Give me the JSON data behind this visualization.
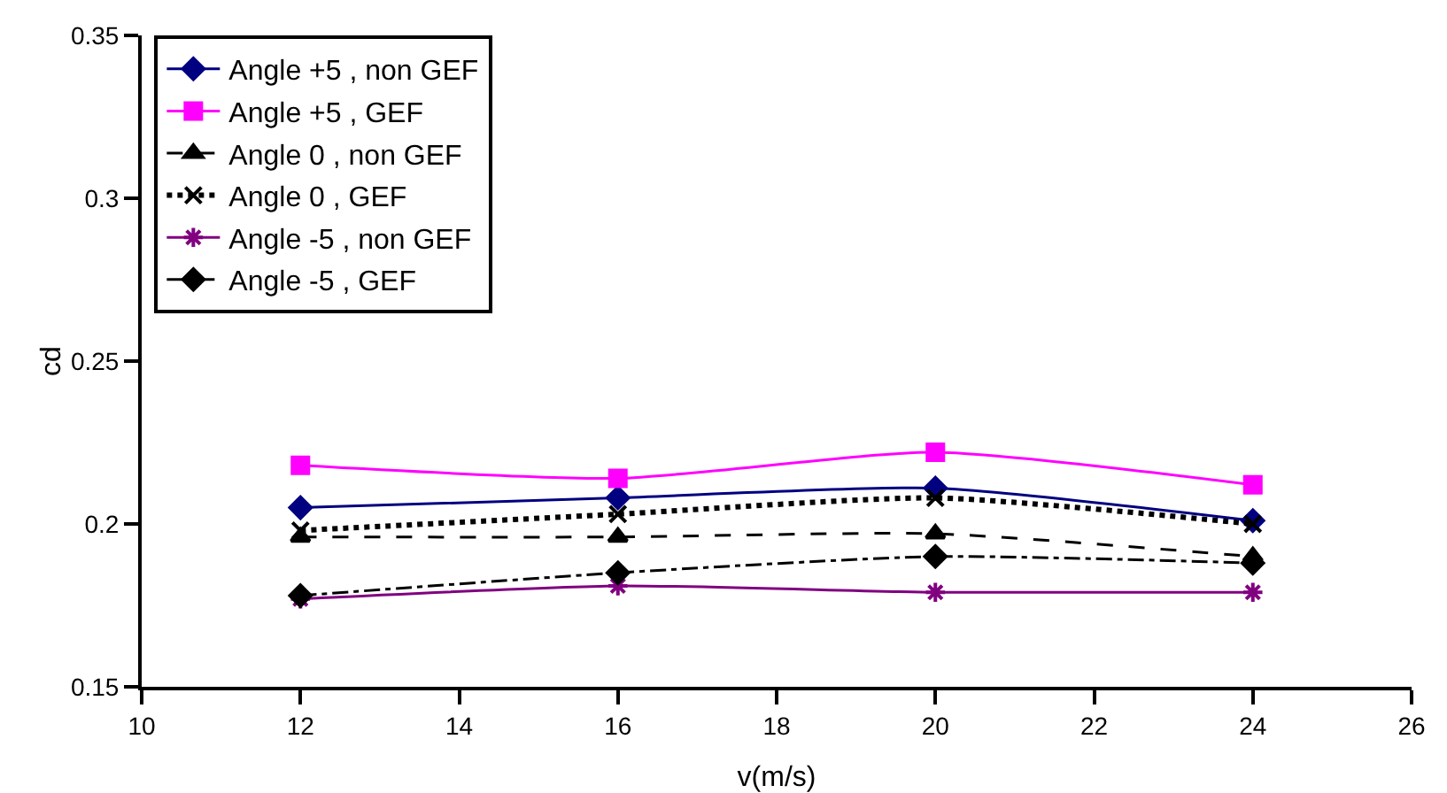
{
  "chart_data": {
    "type": "line",
    "xlabel": "v(m/s)",
    "ylabel": "cd",
    "x": [
      12,
      16,
      20,
      24
    ],
    "xlim": [
      10,
      26
    ],
    "xticks": [
      10,
      12,
      14,
      16,
      18,
      20,
      22,
      24,
      26
    ],
    "ylim": [
      0.15,
      0.35
    ],
    "yticks": [
      0.15,
      0.2,
      0.25,
      0.3,
      0.35
    ],
    "grid": false,
    "legend": "top left",
    "series": [
      {
        "name": "Angle +5 , non GEF",
        "color": "#000080",
        "values": [
          0.205,
          0.208,
          0.211,
          0.201
        ],
        "marker": "diamond",
        "line_style": "solid"
      },
      {
        "name": "Angle +5 , GEF",
        "color": "#ff00ff",
        "values": [
          0.218,
          0.214,
          0.222,
          0.212
        ],
        "marker": "square",
        "line_style": "solid"
      },
      {
        "name": "Angle 0 , non GEF",
        "color": "#000000",
        "values": [
          0.196,
          0.196,
          0.197,
          0.19
        ],
        "marker": "triangle",
        "line_style": "dashed"
      },
      {
        "name": "Angle 0 , GEF",
        "color": "#000000",
        "values": [
          0.198,
          0.203,
          0.208,
          0.2
        ],
        "marker": "cross",
        "line_style": "dotted"
      },
      {
        "name": "Angle -5 , non GEF",
        "color": "#800080",
        "values": [
          0.177,
          0.181,
          0.179,
          0.179
        ],
        "marker": "cross",
        "line_style": "solid"
      },
      {
        "name": "Angle -5 , GEF",
        "color": "#000000",
        "values": [
          0.178,
          0.185,
          0.19,
          0.188
        ],
        "marker": "diamond",
        "line_style": "dashdot"
      }
    ]
  }
}
